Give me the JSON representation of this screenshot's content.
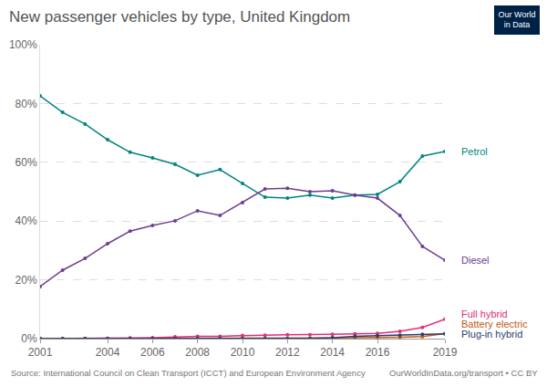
{
  "chart_data": {
    "type": "line",
    "title": "New passenger vehicles by type, United Kingdom",
    "source": "Source: International Council on Clean Transport (ICCT) and European Environment Agency",
    "note": "OurWorldInData.org/transport • CC BY",
    "logo": [
      "Our World",
      "in Data"
    ],
    "x": [
      2001,
      2002,
      2003,
      2004,
      2005,
      2006,
      2007,
      2008,
      2009,
      2010,
      2011,
      2012,
      2013,
      2014,
      2015,
      2016,
      2017,
      2018,
      2019
    ],
    "series": [
      {
        "name": "Petrol",
        "color": "#00847e",
        "values": [
          82.6,
          77.0,
          73.0,
          67.7,
          63.4,
          61.5,
          59.3,
          55.6,
          57.5,
          52.8,
          48.1,
          47.8,
          48.8,
          47.8,
          48.8,
          49.1,
          53.4,
          62.1,
          63.7
        ]
      },
      {
        "name": "Diesel",
        "color": "#6d3e91",
        "values": [
          17.7,
          23.3,
          27.3,
          32.3,
          36.6,
          38.5,
          40.1,
          43.5,
          41.9,
          46.3,
          50.9,
          51.2,
          50.0,
          50.3,
          48.8,
          47.8,
          41.9,
          31.4,
          26.7
        ]
      },
      {
        "name": "Full hybrid",
        "color": "#e0307a",
        "values": [
          0,
          0,
          0,
          0.1,
          0.2,
          0.3,
          0.6,
          0.8,
          0.8,
          1.1,
          1.2,
          1.3,
          1.3,
          1.5,
          1.6,
          1.8,
          2.5,
          3.8,
          6.6
        ]
      },
      {
        "name": "Battery electric",
        "color": "#c05917",
        "values": [
          0,
          0,
          0,
          0,
          0,
          0,
          0,
          0,
          0,
          0,
          0.05,
          0.1,
          0.1,
          0.2,
          0.3,
          0.3,
          0.5,
          0.7,
          1.7
        ]
      },
      {
        "name": "Plug-in hybrid",
        "color": "#2c3e72",
        "values": [
          0,
          0,
          0,
          0,
          0,
          0,
          0,
          0,
          0,
          0,
          0,
          0,
          0.1,
          0.3,
          0.8,
          1.0,
          1.2,
          1.5,
          1.6
        ]
      }
    ],
    "xlim": [
      2001,
      2019
    ],
    "xticks": [
      2001,
      2004,
      2006,
      2008,
      2010,
      2012,
      2014,
      2016,
      2019
    ],
    "ylim": [
      0,
      100
    ],
    "yticks": [
      {
        "value": 0,
        "label": "0%"
      },
      {
        "value": 20,
        "label": "20%"
      },
      {
        "value": 40,
        "label": "40%"
      },
      {
        "value": 60,
        "label": "60%"
      },
      {
        "value": 80,
        "label": "80%"
      },
      {
        "value": 100,
        "label": "100%"
      }
    ],
    "grid": true,
    "marker": "circle"
  }
}
